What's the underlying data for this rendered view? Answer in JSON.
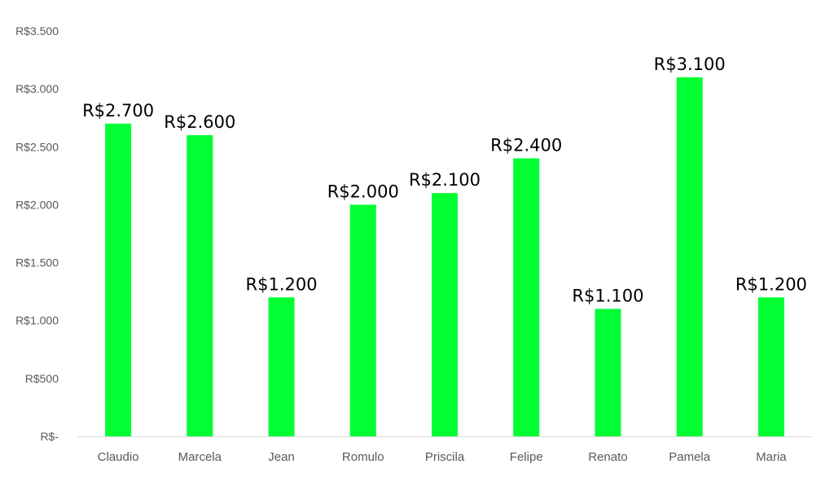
{
  "chart_data": {
    "type": "bar",
    "title": "",
    "xlabel": "",
    "ylabel": "",
    "categories": [
      "Claudio",
      "Marcela",
      "Jean",
      "Romulo",
      "Priscila",
      "Felipe",
      "Renato",
      "Pamela",
      "Maria"
    ],
    "values": [
      2700,
      2600,
      1200,
      2000,
      2100,
      2400,
      1100,
      3100,
      1200
    ],
    "data_labels": [
      "R$2.700",
      "R$2.600",
      "R$1.200",
      "R$2.000",
      "R$2.100",
      "R$2.400",
      "R$1.100",
      "R$3.100",
      "R$1.200"
    ],
    "ylim": [
      0,
      3500
    ],
    "yticks": [
      0,
      500,
      1000,
      1500,
      2000,
      2500,
      3000,
      3500
    ],
    "ytick_labels": [
      "R$-",
      "R$500",
      "R$1.000",
      "R$1.500",
      "R$2.000",
      "R$2.500",
      "R$3.000",
      "R$3.500"
    ],
    "grid": false,
    "legend": "none",
    "bar_color": "#00ff33"
  }
}
